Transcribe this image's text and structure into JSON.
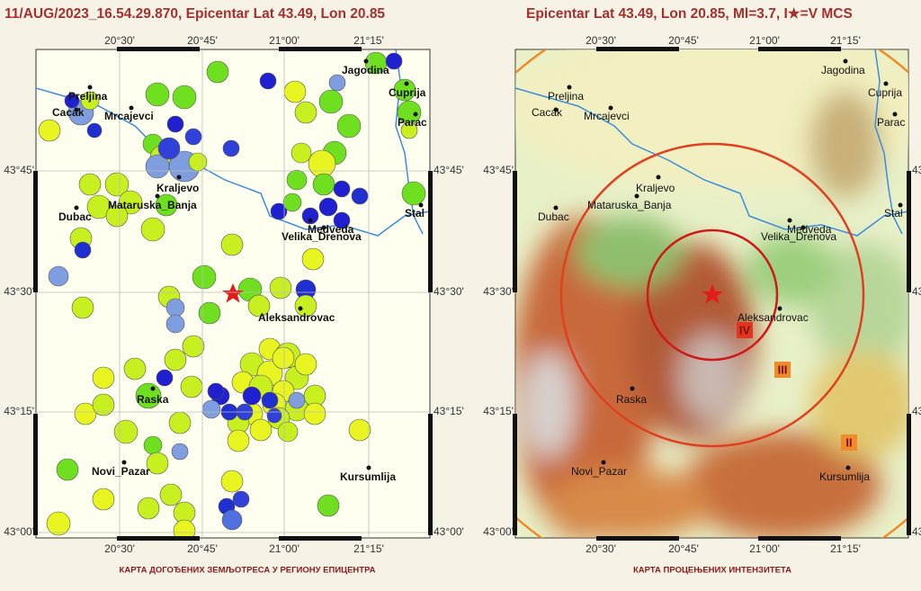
{
  "left_map": {
    "title": "11/AUG/2023_16.54.29.870, Epicentar Lat 43.49, Lon 20.85",
    "lon_ticks": [
      "20°30'",
      "20°45'",
      "21°00'",
      "21°15'"
    ],
    "lat_ticks": [
      "43°45'",
      "43°30'",
      "43°15'",
      "43°00'"
    ],
    "places": [
      "Preljina",
      "Cacak",
      "Mrcajevci",
      "Kraljevo",
      "Mataruska_Banja",
      "Dubac",
      "Medveda",
      "Velika_Drenova",
      "Aleksandrovac",
      "Raska",
      "Novi_Pazar",
      "Kursumlija",
      "Jagodina",
      "Cuprija",
      "Parac",
      "Stal"
    ],
    "caption": "КАРТА ДОГОЂЕНИХ ЗЕМЉОТРЕСА У РЕГИОНУ ЕПИЦЕНТРА"
  },
  "right_map": {
    "title": "Epicentar Lat 43.49, Lon 20.85, Ml=3.7, I★=V MCS",
    "lon_ticks": [
      "20°30'",
      "20°45'",
      "21°00'",
      "21°15'"
    ],
    "lat_ticks": [
      "43°45'",
      "43°30'",
      "43°15'",
      "43°00'"
    ],
    "places": [
      "Preljina",
      "Cacak",
      "Mrcajevci",
      "Kraljevo",
      "Mataruska_Banja",
      "Dubac",
      "Medveda",
      "Velika_Drenova",
      "Aleksandrovac",
      "Raska",
      "Novi_Pazar",
      "Kursumlija",
      "Jagodina",
      "Cuprija",
      "Parac",
      "Stal"
    ],
    "intensity_labels": [
      "IV",
      "III",
      "II"
    ],
    "caption": "КАРТА ПРОЦЕЊЕНИХ ИНТЕНЗИТЕТА"
  }
}
